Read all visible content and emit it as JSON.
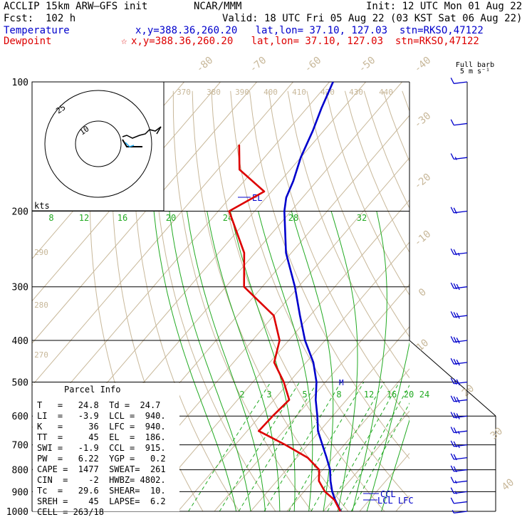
{
  "header": {
    "model": "ACCLIP 15km ARW–GFS init",
    "agency": "NCAR/MMM",
    "init": "Init: 12 UTC Mon 01 Aug 22",
    "fcst": "Fcst:  102 h",
    "valid": "Valid: 18 UTC Fri 05 Aug 22 (03 KST Sat 06 Aug 22)",
    "temperature_label": "Temperature",
    "temperature_info": "x,y=388.36,260.20   lat,lon= 37.10, 127.03  stn=RKSO,47122",
    "dewpoint_label": "Dewpoint",
    "dewpoint_star": "☆",
    "dewpoint_info": "x,y=388.36,260.20   lat,lon= 37.10, 127.03  stn=RKSO,47122"
  },
  "wind_legend": {
    "line1": "Full barb",
    "line2": "5 m s⁻¹"
  },
  "parcel_info": {
    "title": "Parcel Info",
    "rows": [
      "T   =   24.8  Td =  24.7",
      "LI  =   -3.9  LCL =  940.",
      "K   =     36  LFC =  940.",
      "TT  =     45  EL  =  186.",
      "SWI =   -1.9  CCL =  915.",
      "PW  =   6.22  YGP =   0.2",
      "CAPE =  1477  SWEAT=  261",
      "CIN  =    -2  HWBZ= 4802.",
      "Tc  =   29.6  SHEAR=  10.",
      "SREH =    45  LAPSE=  6.2",
      "CELL = 263/18"
    ]
  },
  "chart_data": {
    "type": "line",
    "title": "",
    "y_axis": {
      "scale": "log-pressure",
      "unit_label": "",
      "ylim": [
        1000,
        100
      ],
      "ticks": [
        100,
        200,
        300,
        400,
        500,
        600,
        700,
        800,
        900,
        1000
      ]
    },
    "x_axis": {
      "skew_temperature_labels": [
        -80,
        -70,
        -60,
        -50,
        -40,
        -30,
        -20,
        -10,
        0,
        10,
        20,
        30,
        40
      ]
    },
    "theta_labels": [
      "370",
      "380",
      "390",
      "400",
      "410",
      "420",
      "430",
      "440",
      "290",
      "280",
      "270"
    ],
    "theta_e_labels": [
      "8",
      "12",
      "16",
      "20",
      "24",
      "28",
      "32"
    ],
    "mixing_ratio_labels": [
      "2",
      "3",
      "5",
      "8",
      "12",
      "16",
      "20",
      "24"
    ],
    "series": [
      {
        "name": "Temperature",
        "color": "#0000cc",
        "points": [
          [
            1000,
            24.8
          ],
          [
            940,
            20.5
          ],
          [
            900,
            17.8
          ],
          [
            850,
            14.8
          ],
          [
            800,
            12.0
          ],
          [
            750,
            8.2
          ],
          [
            700,
            4.0
          ],
          [
            650,
            -0.5
          ],
          [
            600,
            -4.2
          ],
          [
            550,
            -8.5
          ],
          [
            500,
            -12.5
          ],
          [
            450,
            -18.0
          ],
          [
            400,
            -25.5
          ],
          [
            350,
            -32.8
          ],
          [
            300,
            -41.0
          ],
          [
            250,
            -51.5
          ],
          [
            200,
            -61.8
          ],
          [
            186,
            -64.5
          ],
          [
            170,
            -66.5
          ],
          [
            150,
            -70.0
          ],
          [
            130,
            -73.0
          ],
          [
            115,
            -76.0
          ],
          [
            100,
            -79.0
          ]
        ]
      },
      {
        "name": "Dewpoint",
        "color": "#dd0000",
        "points": [
          [
            1000,
            24.7
          ],
          [
            940,
            20.3
          ],
          [
            900,
            15.8
          ],
          [
            850,
            11.6
          ],
          [
            800,
            9.0
          ],
          [
            750,
            3.0
          ],
          [
            700,
            -6.2
          ],
          [
            650,
            -16.8
          ],
          [
            600,
            -16.5
          ],
          [
            550,
            -15.8
          ],
          [
            500,
            -21.5
          ],
          [
            450,
            -28.8
          ],
          [
            400,
            -32.5
          ],
          [
            350,
            -40.0
          ],
          [
            300,
            -55.0
          ],
          [
            250,
            -63.0
          ],
          [
            200,
            -77.0
          ],
          [
            180,
            -72.0
          ],
          [
            160,
            -84.0
          ],
          [
            140,
            -90.0
          ]
        ]
      }
    ],
    "level_labels": {
      "el": "EL",
      "ccl": "CCL",
      "lcl_lfc": "LCL LFC",
      "m": "M"
    },
    "hodograph": {
      "rings_kts": [
        "25",
        "10"
      ],
      "unit": "kts"
    },
    "wind_barbs_ms": [
      [
        1000,
        3
      ],
      [
        950,
        5
      ],
      [
        900,
        8
      ],
      [
        850,
        9
      ],
      [
        800,
        12
      ],
      [
        750,
        12
      ],
      [
        700,
        13
      ],
      [
        650,
        14
      ],
      [
        600,
        15
      ],
      [
        550,
        16
      ],
      [
        500,
        17
      ],
      [
        450,
        17
      ],
      [
        400,
        17
      ],
      [
        350,
        16
      ],
      [
        300,
        15
      ],
      [
        250,
        14
      ],
      [
        200,
        12
      ],
      [
        150,
        9
      ],
      [
        125,
        7
      ],
      [
        100,
        5
      ]
    ],
    "grid": true,
    "legend": "top-left"
  }
}
